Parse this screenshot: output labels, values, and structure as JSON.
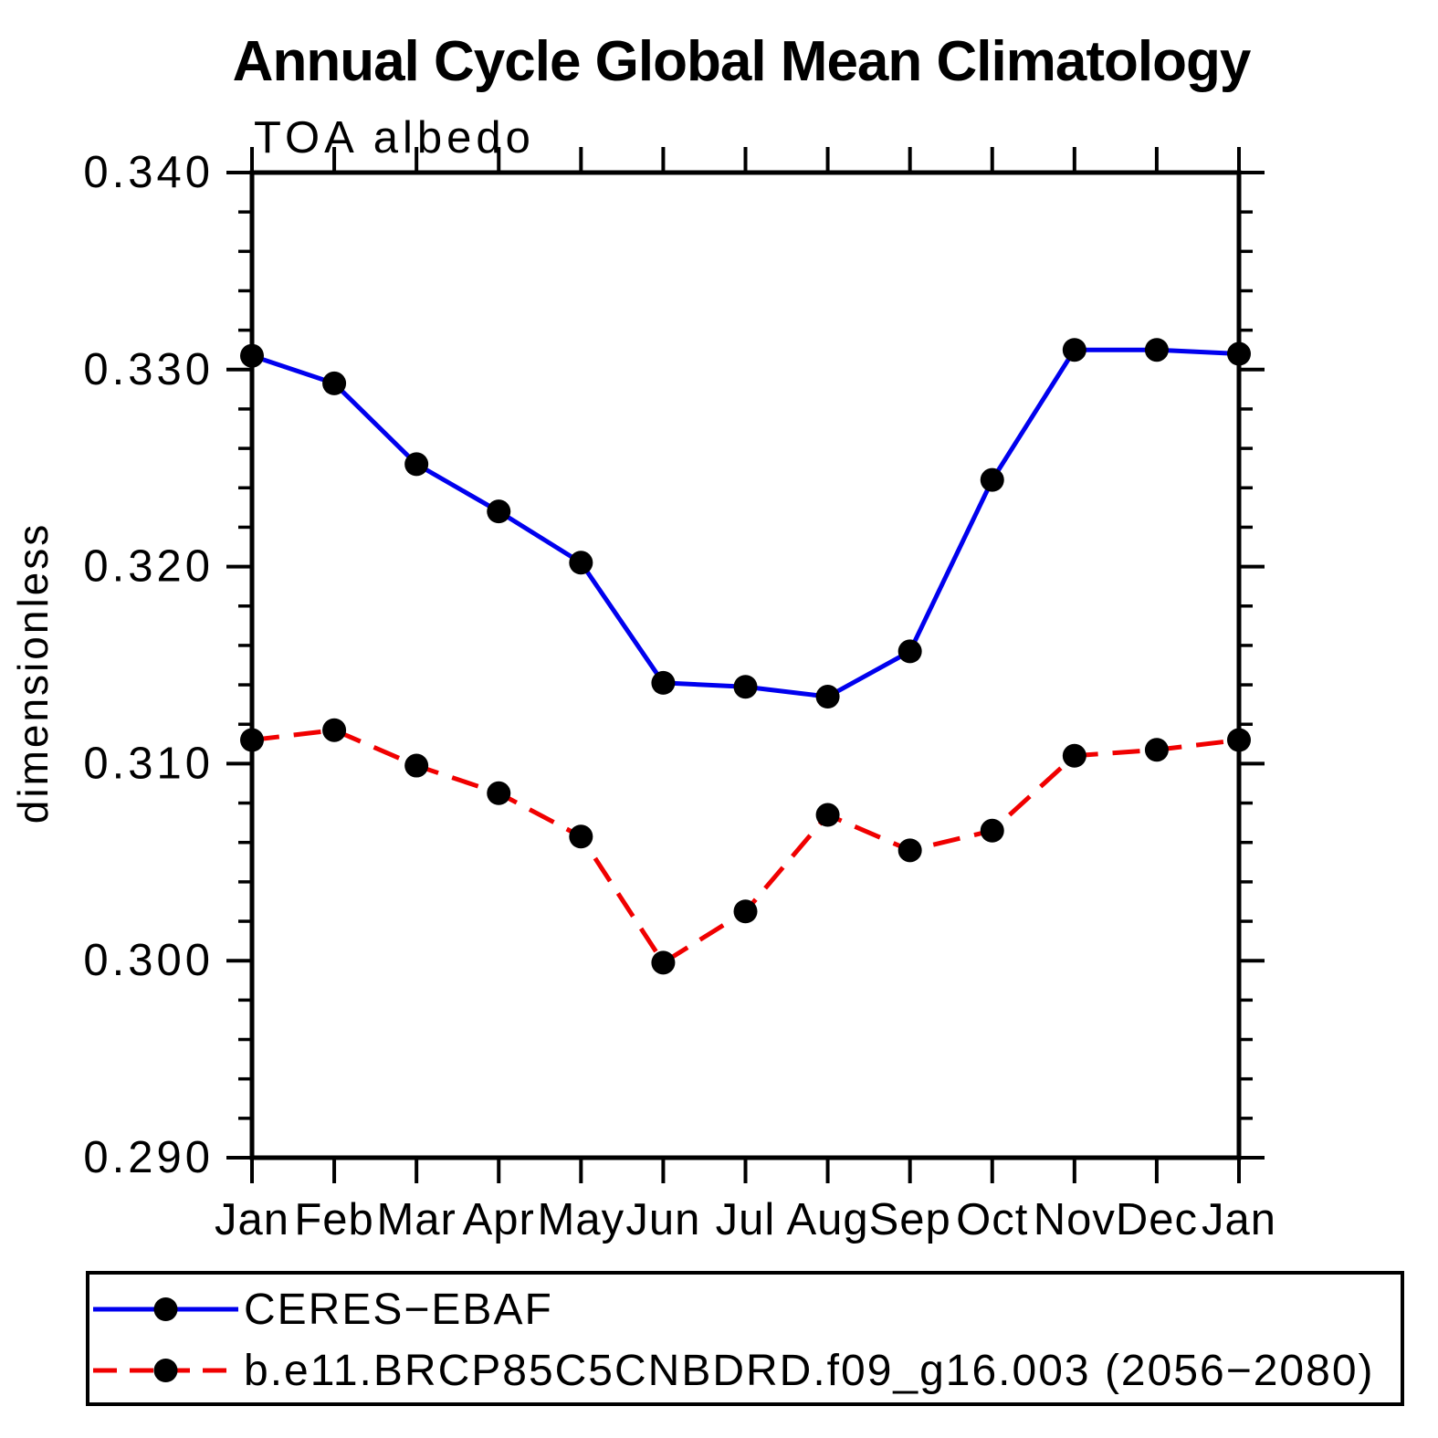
{
  "title": "Annual Cycle Global Mean Climatology",
  "subtitle": "TOA albedo",
  "ylabel": "dimensionless",
  "colors": {
    "axis": "#000000",
    "background": "#ffffff",
    "series_obs": "#0000ee",
    "series_model": "#f00000",
    "marker": "#000000"
  },
  "chart_data": {
    "type": "line",
    "title": "Annual Cycle Global Mean Climatology",
    "subtitle": "TOA albedo",
    "xlabel": "",
    "ylabel": "dimensionless",
    "categories": [
      "Jan",
      "Feb",
      "Mar",
      "Apr",
      "May",
      "Jun",
      "Jul",
      "Aug",
      "Sep",
      "Oct",
      "Nov",
      "Dec",
      "Jan"
    ],
    "ylim": [
      0.29,
      0.34
    ],
    "ytick_step": 0.01,
    "yminor_step": 0.002,
    "ytick_labels": [
      "0.290",
      "0.300",
      "0.310",
      "0.320",
      "0.330",
      "0.340"
    ],
    "grid": false,
    "legend_position": "bottom-left-box",
    "series": [
      {
        "name": "CERES−EBAF",
        "color": "#0000ee",
        "line_style": "solid",
        "marker": "circle",
        "marker_color": "#000000",
        "values": [
          0.3307,
          0.3293,
          0.3252,
          0.3228,
          0.3202,
          0.3141,
          0.3139,
          0.3134,
          0.3157,
          0.3244,
          0.331,
          0.331,
          0.3308
        ]
      },
      {
        "name": "b.e11.BRCP85C5CNBDRD.f09_g16.003 (2056−2080)",
        "color": "#f00000",
        "line_style": "dashed",
        "marker": "circle",
        "marker_color": "#000000",
        "values": [
          0.3112,
          0.3117,
          0.3099,
          0.3085,
          0.3063,
          0.2999,
          0.3025,
          0.3074,
          0.3056,
          0.3066,
          0.3104,
          0.3107,
          0.3112
        ]
      }
    ]
  }
}
